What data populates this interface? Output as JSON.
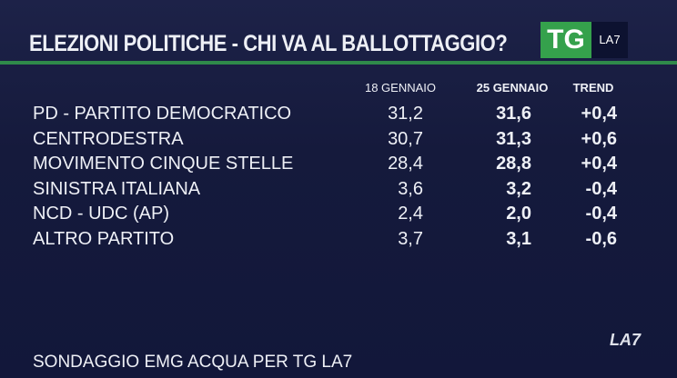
{
  "header": {
    "title": "ELEZIONI POLITICHE - CHI VA AL BALLOTTAGGIO?",
    "logo": {
      "tg": "TG",
      "la7": "LA7"
    }
  },
  "table": {
    "columns": [
      "18 GENNAIO",
      "25 GENNAIO",
      "TREND"
    ],
    "rows": [
      [
        "PD - PARTITO DEMOCRATICO",
        "31,2",
        "31,6",
        "+0,4"
      ],
      [
        "CENTRODESTRA",
        "30,7",
        "31,3",
        "+0,6"
      ],
      [
        "MOVIMENTO CINQUE STELLE",
        "28,4",
        "28,8",
        "+0,4"
      ],
      [
        "SINISTRA ITALIANA",
        "3,6",
        "3,2",
        "-0,4"
      ],
      [
        "NCD - UDC (AP)",
        "2,4",
        "2,0",
        "-0,4"
      ],
      [
        "ALTRO PARTITO",
        "3,7",
        "3,1",
        "-0,6"
      ]
    ]
  },
  "footer": {
    "source": "SONDAGGIO EMG ACQUA PER TG LA7",
    "logo": "LA7"
  }
}
